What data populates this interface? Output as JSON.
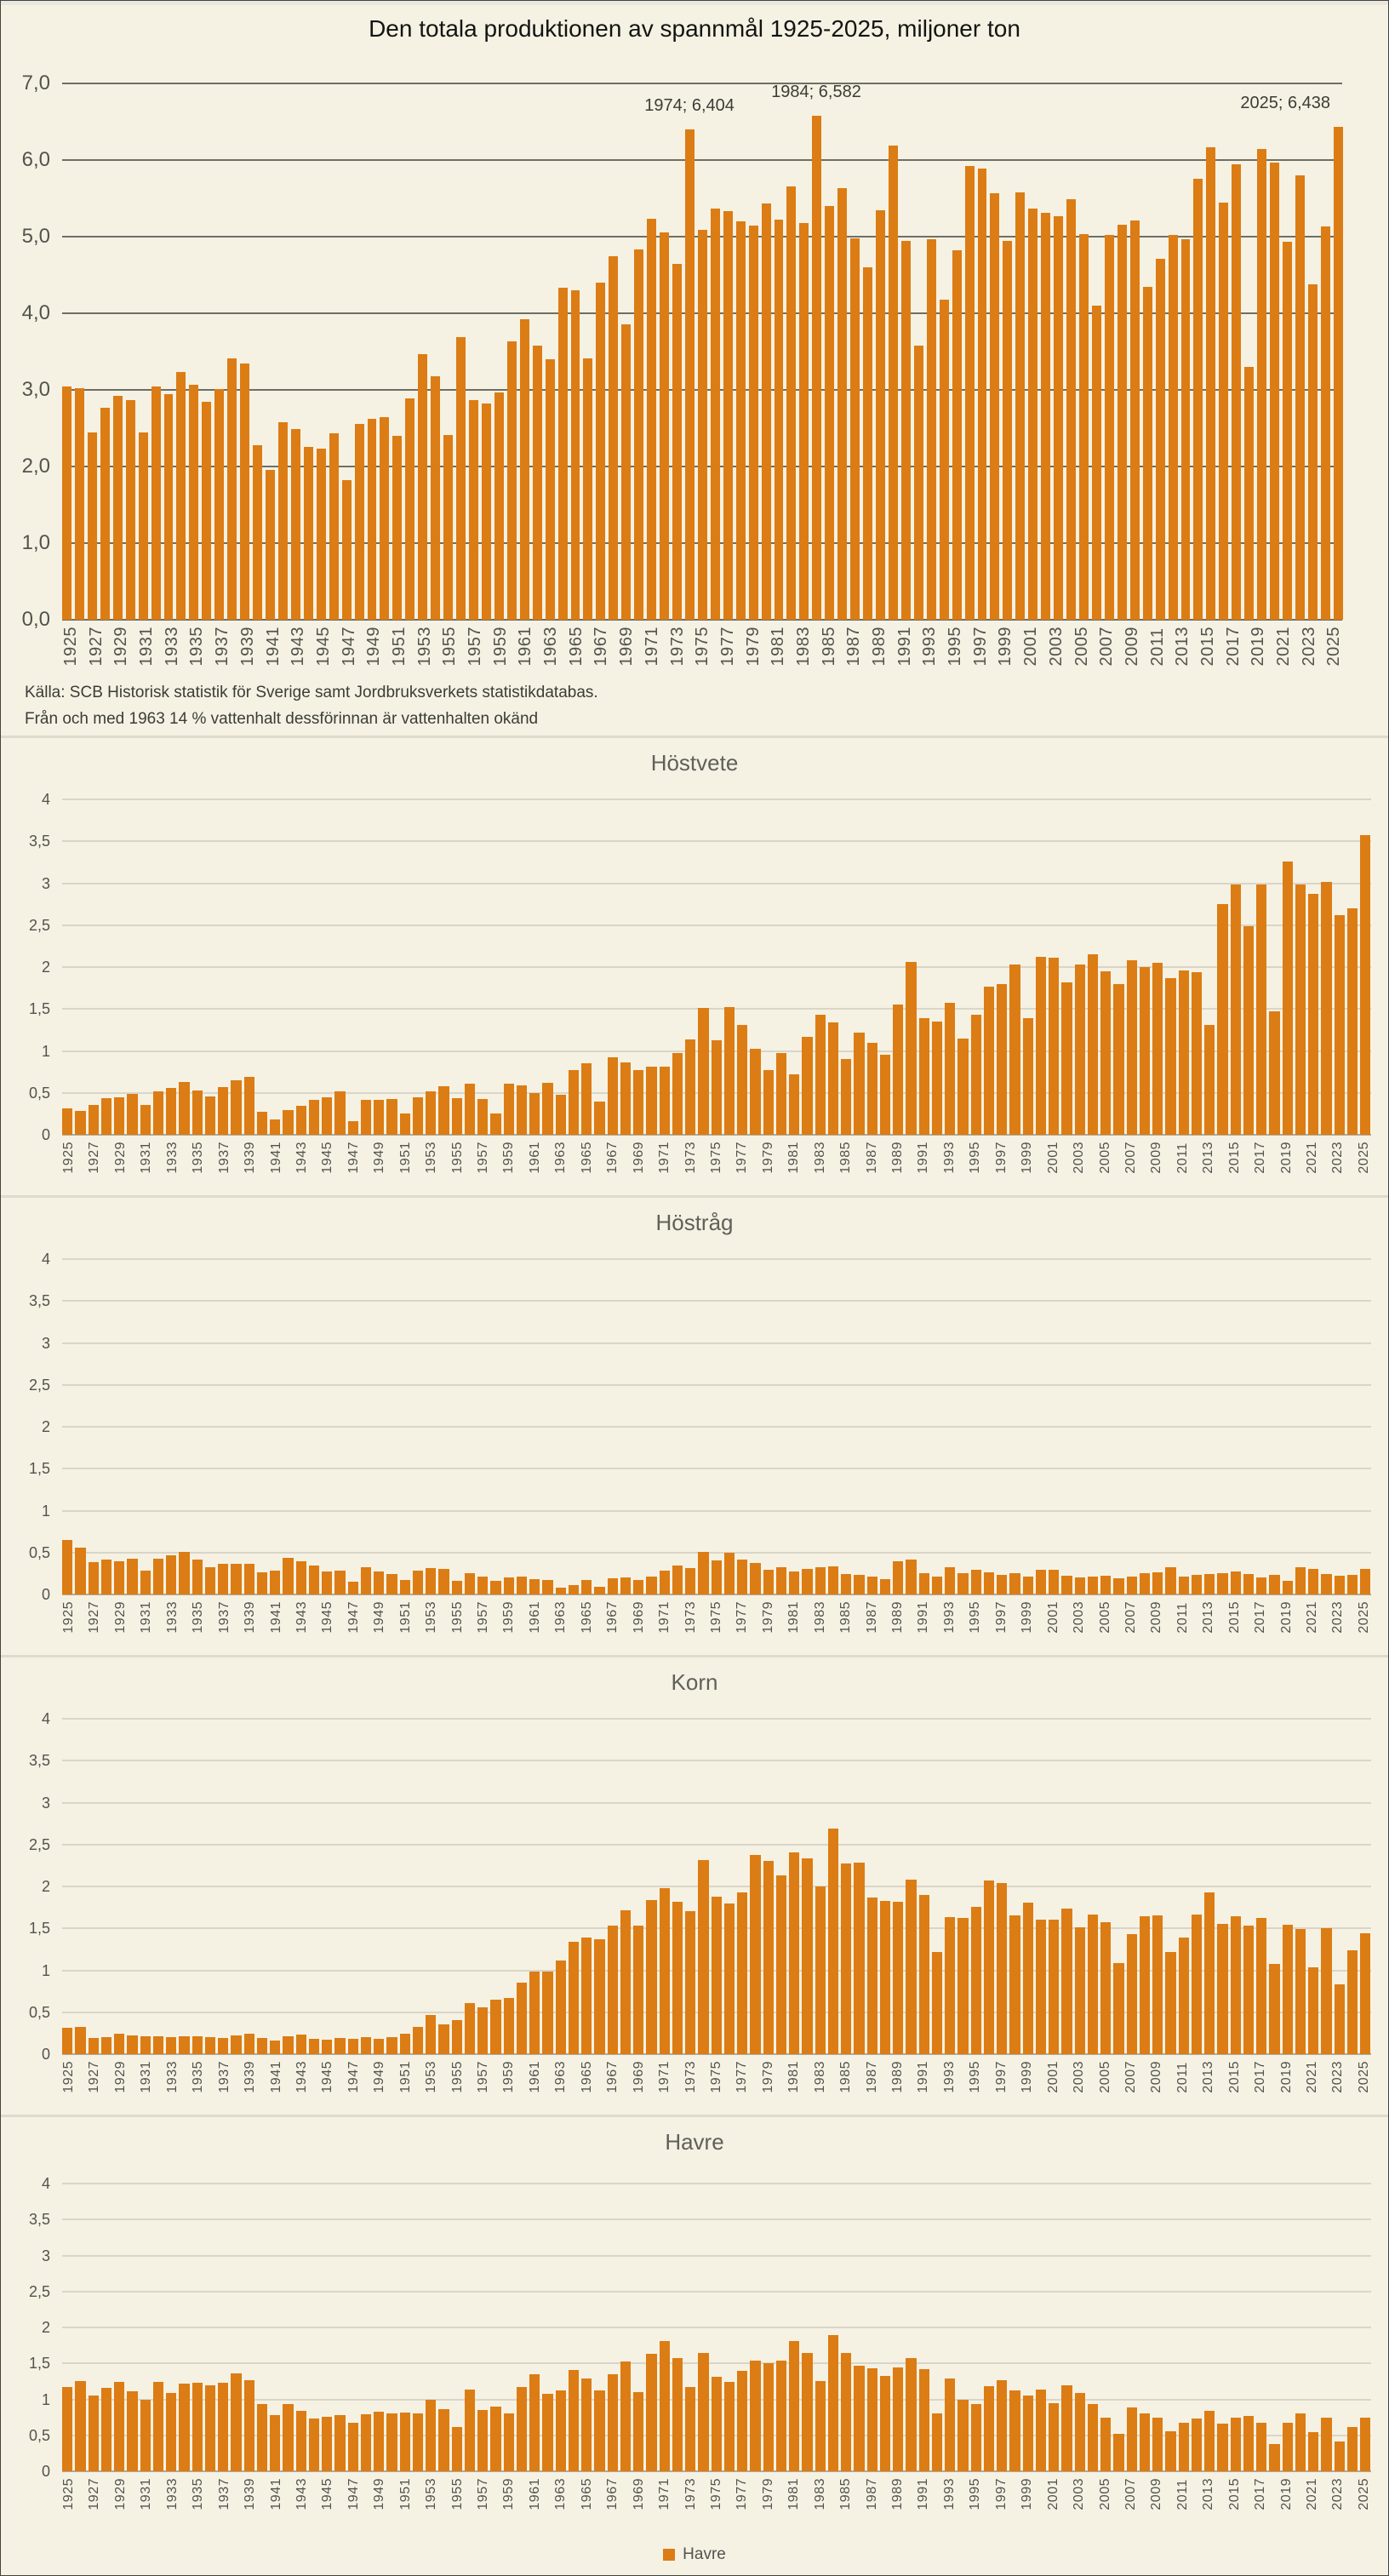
{
  "colors": {
    "bar": "#dc7c14",
    "background": "#f5f2e3",
    "panel_border": "#dedbce",
    "grid_dark": "#6f6e66",
    "grid_light": "#d9d6c9",
    "axis_text_gray": "#53534e",
    "text_dark": "#3c3c38"
  },
  "years": [
    1925,
    1926,
    1927,
    1928,
    1929,
    1930,
    1931,
    1932,
    1933,
    1934,
    1935,
    1936,
    1937,
    1938,
    1939,
    1940,
    1941,
    1942,
    1943,
    1944,
    1945,
    1946,
    1947,
    1948,
    1949,
    1950,
    1951,
    1952,
    1953,
    1954,
    1955,
    1956,
    1957,
    1958,
    1959,
    1960,
    1961,
    1962,
    1963,
    1964,
    1965,
    1966,
    1967,
    1968,
    1969,
    1970,
    1971,
    1972,
    1973,
    1974,
    1975,
    1976,
    1977,
    1978,
    1979,
    1980,
    1981,
    1982,
    1983,
    1984,
    1985,
    1986,
    1987,
    1988,
    1989,
    1990,
    1991,
    1992,
    1993,
    1994,
    1995,
    1996,
    1997,
    1998,
    1999,
    2000,
    2001,
    2002,
    2003,
    2004,
    2005,
    2006,
    2007,
    2008,
    2009,
    2010,
    2011,
    2012,
    2013,
    2014,
    2015,
    2016,
    2017,
    2018,
    2019,
    2020,
    2021,
    2022,
    2023,
    2024,
    2025
  ],
  "chart_data": [
    {
      "id": "total",
      "type": "bar",
      "title": "Den totala produktionen av spannmål 1925-2025, miljoner ton",
      "ylabel": "",
      "xlabel": "",
      "ylim": [
        0,
        7
      ],
      "ymax": 7,
      "grid": true,
      "ytick_labels": [
        "0,0",
        "1,0",
        "2,0",
        "3,0",
        "4,0",
        "5,0",
        "6,0",
        "7,0"
      ],
      "ytick_values": [
        0,
        1,
        2,
        3,
        4,
        5,
        6,
        7
      ],
      "annotations": [
        {
          "year": 1974,
          "label": "1974; 6,404"
        },
        {
          "year": 1984,
          "label": "1984; 6,582"
        },
        {
          "year": 2025,
          "label": "2025; 6,438",
          "anchor": "right"
        }
      ],
      "source_lines": [
        "Källa: SCB Historisk statistik för Sverige samt Jordbruksverkets statistikdatabas.",
        "Från och med 1963 14 % vattenhalt dessförinnan är vattenhalten okänd"
      ],
      "values": [
        3.05,
        3.02,
        2.45,
        2.77,
        2.92,
        2.87,
        2.45,
        3.05,
        2.94,
        3.23,
        3.07,
        2.85,
        3.01,
        3.41,
        3.35,
        2.28,
        1.96,
        2.58,
        2.49,
        2.26,
        2.23,
        2.43,
        1.82,
        2.56,
        2.62,
        2.64,
        2.4,
        2.89,
        3.47,
        3.18,
        2.41,
        3.69,
        2.87,
        2.82,
        2.97,
        3.63,
        3.92,
        3.58,
        3.4,
        4.33,
        4.3,
        3.41,
        4.4,
        4.75,
        3.86,
        4.83,
        5.23,
        5.06,
        4.65,
        6.404,
        5.09,
        5.37,
        5.33,
        5.2,
        5.15,
        5.43,
        5.22,
        5.66,
        5.18,
        6.582,
        5.4,
        5.63,
        4.98,
        4.6,
        5.34,
        6.19,
        4.94,
        3.58,
        4.97,
        4.18,
        4.82,
        5.92,
        5.89,
        5.57,
        4.95,
        5.58,
        5.37,
        5.31,
        5.27,
        5.49,
        5.03,
        4.1,
        5.02,
        5.16,
        5.21,
        4.35,
        4.71,
        5.02,
        4.97,
        5.76,
        6.17,
        5.44,
        5.95,
        3.3,
        6.15,
        5.97,
        4.93,
        5.8,
        4.38,
        5.13,
        6.438
      ]
    },
    {
      "id": "hostvete",
      "type": "bar",
      "title": "Höstvete",
      "ylabel": "",
      "xlabel": "",
      "ylim": [
        0,
        4
      ],
      "ymax": 4,
      "grid": true,
      "ytick_labels": [
        "0",
        "0,5",
        "1",
        "1,5",
        "2",
        "2,5",
        "3",
        "3,5",
        "4"
      ],
      "ytick_values": [
        0,
        0.5,
        1,
        1.5,
        2,
        2.5,
        3,
        3.5,
        4
      ],
      "values": [
        0.31,
        0.28,
        0.36,
        0.44,
        0.45,
        0.49,
        0.36,
        0.52,
        0.56,
        0.63,
        0.53,
        0.46,
        0.57,
        0.65,
        0.69,
        0.27,
        0.18,
        0.29,
        0.35,
        0.42,
        0.45,
        0.52,
        0.16,
        0.42,
        0.42,
        0.43,
        0.25,
        0.45,
        0.52,
        0.58,
        0.44,
        0.61,
        0.43,
        0.25,
        0.61,
        0.59,
        0.5,
        0.62,
        0.48,
        0.77,
        0.85,
        0.4,
        0.92,
        0.86,
        0.77,
        0.81,
        0.81,
        0.97,
        1.14,
        1.51,
        1.13,
        1.52,
        1.31,
        1.03,
        0.77,
        0.97,
        0.72,
        1.17,
        1.43,
        1.34,
        0.9,
        1.22,
        1.1,
        0.95,
        1.55,
        2.06,
        1.39,
        1.35,
        1.57,
        1.15,
        1.43,
        1.77,
        1.8,
        2.03,
        1.39,
        2.12,
        2.11,
        1.82,
        2.03,
        2.15,
        1.95,
        1.8,
        2.08,
        2.0,
        2.05,
        1.87,
        1.96,
        1.94,
        1.31,
        2.75,
        2.99,
        2.49,
        2.99,
        1.47,
        3.26,
        2.99,
        2.87,
        3.02,
        2.62,
        2.7,
        3.57
      ]
    },
    {
      "id": "hostrag",
      "type": "bar",
      "title": "Höstråg",
      "ylabel": "",
      "xlabel": "",
      "ylim": [
        0,
        4
      ],
      "ymax": 4,
      "grid": true,
      "ytick_labels": [
        "0",
        "0,5",
        "1",
        "1,5",
        "2",
        "2,5",
        "3",
        "3,5",
        "4"
      ],
      "ytick_values": [
        0,
        0.5,
        1,
        1.5,
        2,
        2.5,
        3,
        3.5,
        4
      ],
      "values": [
        0.65,
        0.56,
        0.39,
        0.42,
        0.4,
        0.43,
        0.28,
        0.43,
        0.47,
        0.51,
        0.42,
        0.33,
        0.37,
        0.37,
        0.37,
        0.26,
        0.28,
        0.44,
        0.4,
        0.35,
        0.27,
        0.28,
        0.15,
        0.32,
        0.27,
        0.24,
        0.17,
        0.28,
        0.31,
        0.3,
        0.16,
        0.25,
        0.21,
        0.16,
        0.2,
        0.21,
        0.18,
        0.17,
        0.08,
        0.11,
        0.17,
        0.09,
        0.19,
        0.2,
        0.17,
        0.21,
        0.28,
        0.35,
        0.31,
        0.51,
        0.41,
        0.5,
        0.42,
        0.38,
        0.29,
        0.32,
        0.27,
        0.3,
        0.32,
        0.34,
        0.24,
        0.23,
        0.21,
        0.18,
        0.4,
        0.42,
        0.25,
        0.21,
        0.33,
        0.25,
        0.29,
        0.26,
        0.23,
        0.25,
        0.21,
        0.29,
        0.29,
        0.22,
        0.2,
        0.21,
        0.22,
        0.19,
        0.21,
        0.25,
        0.26,
        0.32,
        0.21,
        0.23,
        0.24,
        0.25,
        0.27,
        0.24,
        0.2,
        0.23,
        0.16,
        0.32,
        0.3,
        0.24,
        0.22,
        0.23,
        0.3
      ]
    },
    {
      "id": "korn",
      "type": "bar",
      "title": "Korn",
      "ylabel": "",
      "xlabel": "",
      "ylim": [
        0,
        4
      ],
      "ymax": 4,
      "grid": true,
      "ytick_labels": [
        "0",
        "0,5",
        "1",
        "1,5",
        "2",
        "2,5",
        "3",
        "3,5",
        "4"
      ],
      "ytick_values": [
        0,
        0.5,
        1,
        1.5,
        2,
        2.5,
        3,
        3.5,
        4
      ],
      "values": [
        0.31,
        0.32,
        0.19,
        0.2,
        0.24,
        0.22,
        0.21,
        0.21,
        0.2,
        0.21,
        0.21,
        0.2,
        0.19,
        0.22,
        0.24,
        0.19,
        0.16,
        0.21,
        0.23,
        0.18,
        0.17,
        0.19,
        0.18,
        0.2,
        0.18,
        0.2,
        0.24,
        0.33,
        0.47,
        0.36,
        0.41,
        0.61,
        0.56,
        0.65,
        0.67,
        0.85,
        0.99,
        0.98,
        1.12,
        1.34,
        1.39,
        1.37,
        1.53,
        1.72,
        1.53,
        1.84,
        1.98,
        1.82,
        1.71,
        2.31,
        1.88,
        1.8,
        1.93,
        2.38,
        2.3,
        2.13,
        2.41,
        2.34,
        2.0,
        2.69,
        2.27,
        2.28,
        1.87,
        1.83,
        1.82,
        2.08,
        1.9,
        1.22,
        1.63,
        1.62,
        1.76,
        2.07,
        2.04,
        1.65,
        1.81,
        1.6,
        1.6,
        1.74,
        1.51,
        1.67,
        1.57,
        1.09,
        1.43,
        1.64,
        1.65,
        1.22,
        1.39,
        1.67,
        1.93,
        1.55,
        1.64,
        1.53,
        1.62,
        1.08,
        1.54,
        1.49,
        1.04,
        1.5,
        0.83,
        1.24,
        1.44
      ]
    },
    {
      "id": "havre",
      "type": "bar",
      "title": "Havre",
      "ylabel": "",
      "xlabel": "",
      "ylim": [
        0,
        4
      ],
      "ymax": 4,
      "grid": true,
      "legend_label": "Havre",
      "legend_position": "bottom",
      "ytick_labels": [
        "0",
        "0,5",
        "1",
        "1,5",
        "2",
        "2,5",
        "3",
        "3,5",
        "4"
      ],
      "ytick_values": [
        0,
        0.5,
        1,
        1.5,
        2,
        2.5,
        3,
        3.5,
        4
      ],
      "values": [
        1.17,
        1.26,
        1.05,
        1.16,
        1.24,
        1.11,
        0.99,
        1.24,
        1.09,
        1.22,
        1.23,
        1.2,
        1.23,
        1.36,
        1.27,
        0.94,
        0.78,
        0.93,
        0.84,
        0.73,
        0.76,
        0.78,
        0.68,
        0.79,
        0.83,
        0.8,
        0.82,
        0.81,
        0.99,
        0.86,
        0.61,
        1.14,
        0.85,
        0.9,
        0.8,
        1.17,
        1.35,
        1.08,
        1.12,
        1.41,
        1.29,
        1.12,
        1.35,
        1.53,
        1.1,
        1.63,
        1.81,
        1.58,
        1.17,
        1.64,
        1.31,
        1.24,
        1.4,
        1.54,
        1.5,
        1.54,
        1.81,
        1.64,
        1.25,
        1.89,
        1.65,
        1.47,
        1.43,
        1.32,
        1.44,
        1.57,
        1.42,
        0.8,
        1.29,
        0.99,
        0.94,
        1.18,
        1.27,
        1.13,
        1.05,
        1.14,
        0.95,
        1.19,
        1.09,
        0.93,
        0.75,
        0.52,
        0.89,
        0.8,
        0.75,
        0.56,
        0.68,
        0.73,
        0.84,
        0.66,
        0.75,
        0.77,
        0.68,
        0.38,
        0.67,
        0.81,
        0.55,
        0.74,
        0.41,
        0.61,
        0.74
      ]
    }
  ]
}
